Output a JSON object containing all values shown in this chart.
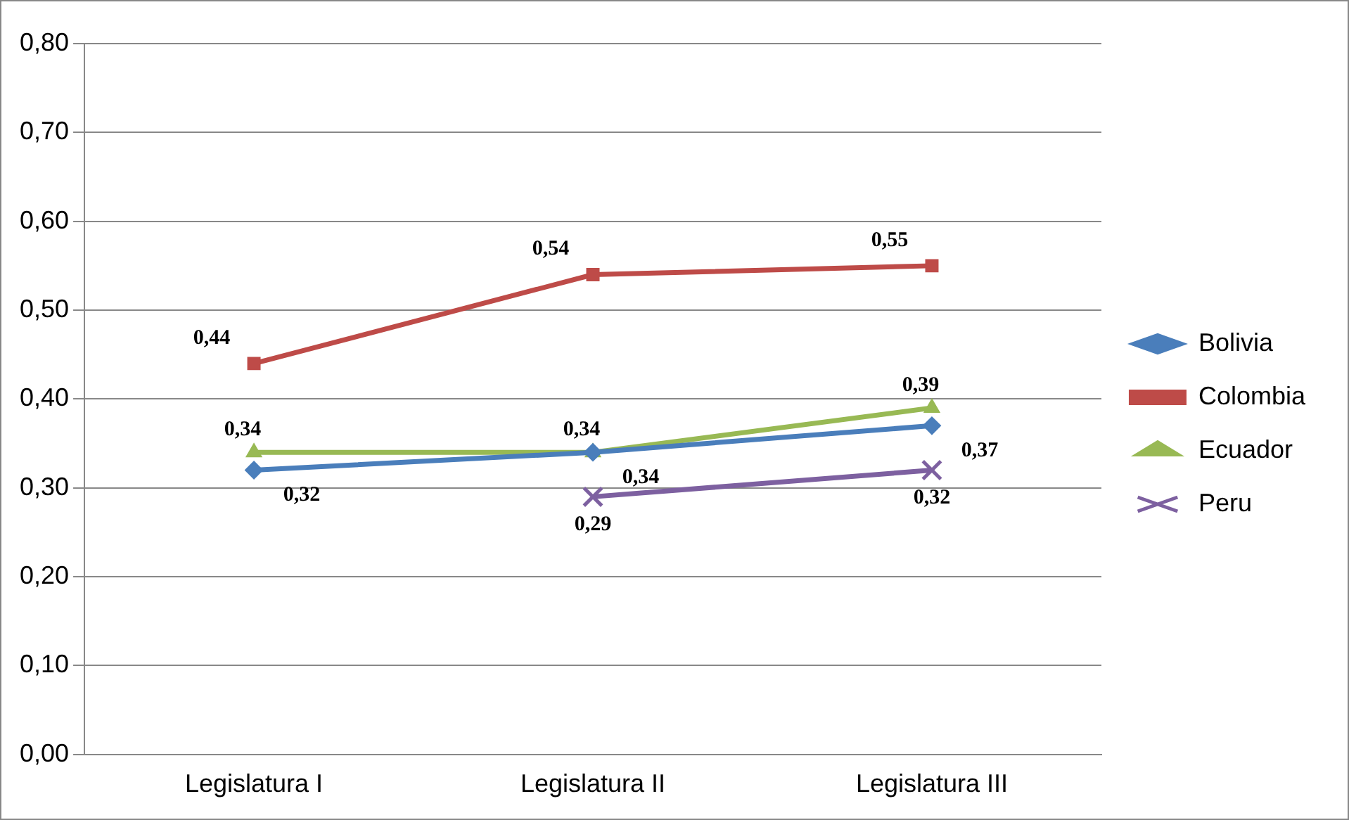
{
  "chart_data": {
    "type": "line",
    "categories": [
      "Legislatura I",
      "Legislatura II",
      "Legislatura III"
    ],
    "series": [
      {
        "name": "Bolivia",
        "color": "#4a7ebb",
        "marker": "diamond",
        "values": [
          0.32,
          0.34,
          0.37
        ],
        "value_labels": [
          "0,32",
          "0,34",
          "0,37"
        ]
      },
      {
        "name": "Colombia",
        "color": "#be4b48",
        "marker": "square",
        "values": [
          0.44,
          0.54,
          0.55
        ],
        "value_labels": [
          "0,44",
          "0,54",
          "0,55"
        ]
      },
      {
        "name": "Ecuador",
        "color": "#98b954",
        "marker": "triangle",
        "values": [
          0.34,
          0.34,
          0.39
        ],
        "value_labels": [
          "0,34",
          "0,34",
          "0,39"
        ]
      },
      {
        "name": "Peru",
        "color": "#7d60a0",
        "marker": "cross",
        "values": [
          null,
          0.29,
          0.32
        ],
        "value_labels": [
          null,
          "0,29",
          "0,32"
        ]
      }
    ],
    "ylim": [
      0,
      0.8
    ],
    "yticks": [
      {
        "value": 0,
        "label": "0,00"
      },
      {
        "value": 0.1,
        "label": "0,10"
      },
      {
        "value": 0.2,
        "label": "0,20"
      },
      {
        "value": 0.3,
        "label": "0,30"
      },
      {
        "value": 0.4,
        "label": "0,40"
      },
      {
        "value": 0.5,
        "label": "0,50"
      },
      {
        "value": 0.6,
        "label": "0,60"
      },
      {
        "value": 0.7,
        "label": "0,70"
      },
      {
        "value": 0.8,
        "label": "0,80"
      }
    ],
    "grid": "y",
    "legend": "right"
  }
}
